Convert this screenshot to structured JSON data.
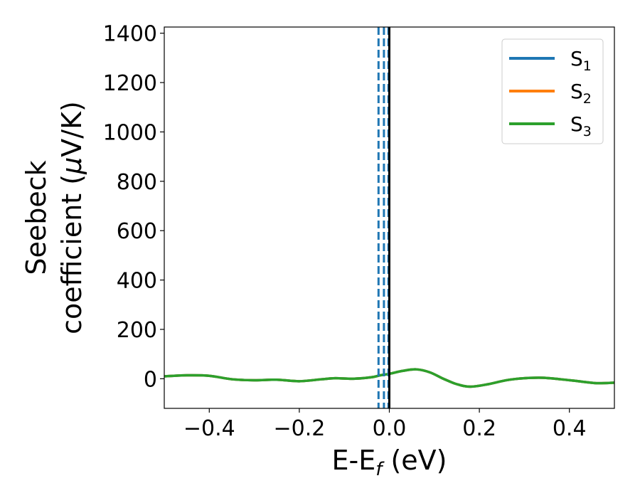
{
  "chart_data": {
    "type": "line",
    "xlabel": "E-E",
    "xlabel_sub": "f",
    "xlabel_unit": " (eV)",
    "ylabel_line1": "Seebeck",
    "ylabel_line2_pre": "coefficient  (",
    "ylabel_mu": "μ",
    "ylabel_line2_post": "V/K)",
    "xlim": [
      -0.5,
      0.5
    ],
    "ylim": [
      -120,
      1425
    ],
    "x_ticks": [
      -0.4,
      -0.2,
      0.0,
      0.2,
      0.4
    ],
    "x_tick_labels": [
      "−0.4",
      "−0.2",
      "0.0",
      "0.2",
      "0.4"
    ],
    "y_ticks": [
      0,
      200,
      400,
      600,
      800,
      1000,
      1200,
      1400
    ],
    "y_tick_labels": [
      "0",
      "200",
      "400",
      "600",
      "800",
      "1000",
      "1200",
      "1400"
    ],
    "grid": false,
    "legend_position": "top-right",
    "x": [
      -0.5,
      -0.45,
      -0.4,
      -0.35,
      -0.3,
      -0.25,
      -0.2,
      -0.15,
      -0.12,
      -0.08,
      -0.04,
      -0.02,
      0.0,
      0.03,
      0.06,
      0.09,
      0.12,
      0.15,
      0.18,
      0.22,
      0.26,
      0.3,
      0.34,
      0.38,
      0.42,
      0.46,
      0.5
    ],
    "series": [
      {
        "name": "S",
        "sub": "1",
        "color": "#1f77b4",
        "values": [
          10,
          14,
          12,
          -2,
          -6,
          -4,
          -10,
          -2,
          2,
          0,
          6,
          14,
          20,
          32,
          38,
          26,
          0,
          -22,
          -32,
          -22,
          -6,
          2,
          4,
          -2,
          -10,
          -18,
          -16
        ]
      },
      {
        "name": "S",
        "sub": "2",
        "color": "#ff7f0e",
        "values": [
          10,
          14,
          12,
          -2,
          -6,
          -4,
          -10,
          -2,
          2,
          0,
          6,
          14,
          20,
          32,
          38,
          26,
          0,
          -22,
          -32,
          -22,
          -6,
          2,
          4,
          -2,
          -10,
          -18,
          -16
        ]
      },
      {
        "name": "S",
        "sub": "3",
        "color": "#2ca02c",
        "values": [
          10,
          14,
          12,
          -2,
          -6,
          -4,
          -10,
          -2,
          2,
          0,
          6,
          14,
          20,
          32,
          38,
          26,
          0,
          -22,
          -32,
          -22,
          -6,
          2,
          4,
          -2,
          -10,
          -18,
          -16
        ]
      }
    ],
    "vlines": [
      {
        "x": -0.024,
        "color": "#1f77b4",
        "style": "dashed"
      },
      {
        "x": -0.012,
        "color": "#1f77b4",
        "style": "dashed"
      },
      {
        "x": -0.002,
        "color": "#1f77b4",
        "style": "dashed"
      },
      {
        "x": 0.0,
        "color": "#000000",
        "style": "solid"
      }
    ]
  }
}
